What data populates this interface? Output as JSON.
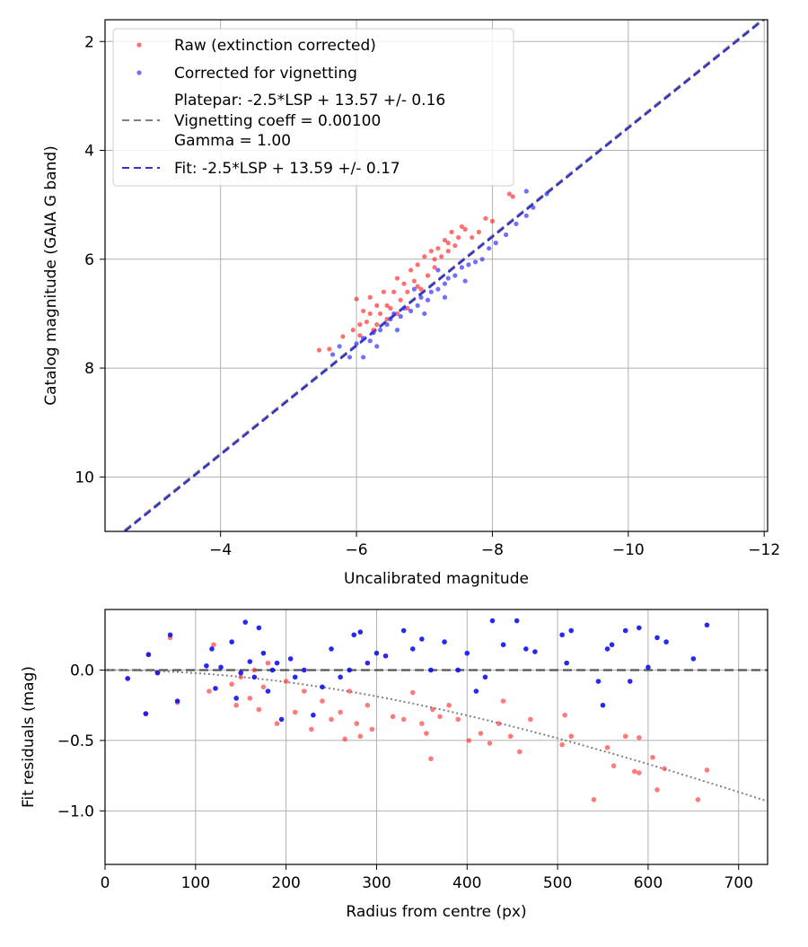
{
  "chart_data": [
    {
      "type": "scatter",
      "xlabel": "Uncalibrated magnitude",
      "ylabel": "Catalog magnitude (GAIA G band)",
      "xlim": [
        -2.3,
        -12.05
      ],
      "ylim": [
        11.0,
        1.6
      ],
      "grid": true,
      "x_ticks": [
        -4,
        -6,
        -8,
        -10,
        -12
      ],
      "x_tick_labels": [
        "−4",
        "−6",
        "−8",
        "−10",
        "−12"
      ],
      "y_ticks": [
        2,
        4,
        6,
        8,
        10
      ],
      "y_tick_labels": [
        "2",
        "4",
        "6",
        "8",
        "10"
      ],
      "legend_position": "top-left",
      "legend": {
        "raw": "Raw (extinction corrected)",
        "corrected": "Corrected for vignetting",
        "platepar_line1": "Platepar: -2.5*LSP + 13.57 +/- 0.16",
        "platepar_line2": "Vignetting coeff = 0.00100",
        "platepar_line3": "Gamma = 1.00",
        "fit": "Fit: -2.5*LSP + 13.59 +/- 0.17"
      },
      "lines": [
        {
          "name": "platepar",
          "slope": 1.0,
          "intercept": 13.57,
          "color": "#808080",
          "style": "dashed"
        },
        {
          "name": "fit",
          "slope": 1.0,
          "intercept": 13.59,
          "color": "#3333cc",
          "style": "dashed"
        }
      ],
      "series": [
        {
          "name": "Raw (extinction corrected)",
          "color": "#ff3333",
          "points": [
            [
              -5.45,
              7.67
            ],
            [
              -5.6,
              7.65
            ],
            [
              -5.8,
              7.42
            ],
            [
              -5.95,
              7.3
            ],
            [
              -6.0,
              6.73
            ],
            [
              -6.05,
              7.2
            ],
            [
              -6.1,
              6.95
            ],
            [
              -6.15,
              7.15
            ],
            [
              -6.2,
              7.0
            ],
            [
              -6.2,
              6.7
            ],
            [
              -6.25,
              7.3
            ],
            [
              -6.3,
              6.85
            ],
            [
              -6.35,
              7.0
            ],
            [
              -6.4,
              6.6
            ],
            [
              -6.45,
              6.85
            ],
            [
              -6.5,
              6.9
            ],
            [
              -6.55,
              6.6
            ],
            [
              -6.6,
              6.35
            ],
            [
              -6.65,
              6.75
            ],
            [
              -6.7,
              6.45
            ],
            [
              -6.75,
              6.9
            ],
            [
              -6.8,
              6.2
            ],
            [
              -6.85,
              6.4
            ],
            [
              -6.9,
              6.1
            ],
            [
              -6.95,
              6.55
            ],
            [
              -7.0,
              5.95
            ],
            [
              -7.05,
              6.3
            ],
            [
              -7.1,
              5.85
            ],
            [
              -7.15,
              6.15
            ],
            [
              -7.2,
              5.8
            ],
            [
              -7.25,
              5.95
            ],
            [
              -7.3,
              5.65
            ],
            [
              -7.35,
              5.85
            ],
            [
              -7.4,
              5.5
            ],
            [
              -7.45,
              5.75
            ],
            [
              -7.5,
              5.6
            ],
            [
              -7.55,
              5.4
            ],
            [
              -7.6,
              5.45
            ],
            [
              -7.7,
              5.6
            ],
            [
              -7.8,
              5.5
            ],
            [
              -7.9,
              5.25
            ],
            [
              -8.0,
              5.3
            ],
            [
              -8.25,
              4.8
            ],
            [
              -8.3,
              4.85
            ],
            [
              -6.3,
              7.2
            ],
            [
              -6.6,
              7.0
            ],
            [
              -6.9,
              6.5
            ],
            [
              -7.15,
              6.0
            ],
            [
              -7.35,
              5.7
            ],
            [
              -6.05,
              7.4
            ],
            [
              -6.45,
              7.1
            ],
            [
              -6.75,
              6.6
            ]
          ]
        },
        {
          "name": "Corrected for vignetting",
          "color": "#3333ff",
          "points": [
            [
              -5.65,
              7.75
            ],
            [
              -5.75,
              7.6
            ],
            [
              -5.9,
              7.8
            ],
            [
              -6.0,
              7.55
            ],
            [
              -6.1,
              7.45
            ],
            [
              -6.2,
              7.5
            ],
            [
              -6.25,
              7.35
            ],
            [
              -6.35,
              7.3
            ],
            [
              -6.45,
              7.2
            ],
            [
              -6.5,
              7.1
            ],
            [
              -6.55,
              7.0
            ],
            [
              -6.65,
              7.05
            ],
            [
              -6.7,
              6.9
            ],
            [
              -6.8,
              6.95
            ],
            [
              -6.9,
              6.85
            ],
            [
              -6.95,
              6.7
            ],
            [
              -7.05,
              6.75
            ],
            [
              -7.1,
              6.6
            ],
            [
              -7.2,
              6.55
            ],
            [
              -7.3,
              6.45
            ],
            [
              -7.35,
              6.35
            ],
            [
              -7.45,
              6.3
            ],
            [
              -7.55,
              6.15
            ],
            [
              -7.65,
              6.1
            ],
            [
              -7.75,
              6.05
            ],
            [
              -7.85,
              6.0
            ],
            [
              -7.95,
              5.8
            ],
            [
              -8.05,
              5.7
            ],
            [
              -8.2,
              5.55
            ],
            [
              -8.35,
              5.35
            ],
            [
              -8.5,
              5.2
            ],
            [
              -8.6,
              5.05
            ],
            [
              -8.8,
              4.8
            ],
            [
              -8.5,
              4.75
            ],
            [
              -6.1,
              7.8
            ],
            [
              -6.3,
              7.6
            ],
            [
              -6.6,
              7.3
            ],
            [
              -7.0,
              7.0
            ],
            [
              -7.3,
              6.7
            ],
            [
              -7.6,
              6.4
            ],
            [
              -7.2,
              6.2
            ],
            [
              -6.85,
              6.55
            ]
          ]
        }
      ]
    },
    {
      "type": "scatter",
      "xlabel": "Radius from centre (px)",
      "ylabel": "Fit residuals (mag)",
      "xlim": [
        0,
        732
      ],
      "ylim": [
        -1.38,
        0.43
      ],
      "grid": true,
      "x_ticks": [
        0,
        100,
        200,
        300,
        400,
        500,
        600,
        700
      ],
      "x_tick_labels": [
        "0",
        "100",
        "200",
        "300",
        "400",
        "500",
        "600",
        "700"
      ],
      "y_ticks": [
        0.0,
        -0.5,
        -1.0
      ],
      "y_tick_labels": [
        "0.0",
        "−0.5",
        "−1.0"
      ],
      "lines": [
        {
          "name": "zero",
          "value": 0.0,
          "color": "#555555",
          "style": "dashed"
        },
        {
          "name": "vignetting model",
          "coeff": 0.001,
          "color": "#808080",
          "style": "dotted"
        }
      ],
      "series": [
        {
          "name": "Raw (extinction corrected)",
          "color": "#ff3333",
          "points": [
            [
              25,
              -0.06
            ],
            [
              45,
              -0.31
            ],
            [
              48,
              0.11
            ],
            [
              58,
              -0.02
            ],
            [
              72,
              0.23
            ],
            [
              80,
              -0.23
            ],
            [
              115,
              -0.15
            ],
            [
              120,
              0.18
            ],
            [
              140,
              -0.1
            ],
            [
              145,
              -0.25
            ],
            [
              150,
              -0.05
            ],
            [
              160,
              -0.2
            ],
            [
              165,
              0.0
            ],
            [
              170,
              -0.28
            ],
            [
              175,
              -0.12
            ],
            [
              180,
              0.05
            ],
            [
              190,
              -0.38
            ],
            [
              200,
              -0.08
            ],
            [
              210,
              -0.3
            ],
            [
              220,
              -0.15
            ],
            [
              228,
              -0.42
            ],
            [
              240,
              -0.22
            ],
            [
              250,
              -0.35
            ],
            [
              260,
              -0.3
            ],
            [
              265,
              -0.49
            ],
            [
              270,
              -0.15
            ],
            [
              278,
              -0.38
            ],
            [
              282,
              -0.47
            ],
            [
              290,
              -0.25
            ],
            [
              295,
              -0.42
            ],
            [
              318,
              -0.33
            ],
            [
              330,
              -0.35
            ],
            [
              340,
              -0.16
            ],
            [
              350,
              -0.38
            ],
            [
              355,
              -0.45
            ],
            [
              360,
              -0.63
            ],
            [
              362,
              -0.28
            ],
            [
              370,
              -0.33
            ],
            [
              380,
              -0.25
            ],
            [
              390,
              -0.35
            ],
            [
              402,
              -0.5
            ],
            [
              415,
              -0.45
            ],
            [
              425,
              -0.52
            ],
            [
              435,
              -0.38
            ],
            [
              440,
              -0.22
            ],
            [
              448,
              -0.47
            ],
            [
              458,
              -0.58
            ],
            [
              470,
              -0.35
            ],
            [
              505,
              -0.53
            ],
            [
              508,
              -0.32
            ],
            [
              515,
              -0.47
            ],
            [
              540,
              -0.92
            ],
            [
              555,
              -0.55
            ],
            [
              562,
              -0.68
            ],
            [
              575,
              -0.47
            ],
            [
              585,
              -0.72
            ],
            [
              590,
              -0.48
            ],
            [
              605,
              -0.62
            ],
            [
              618,
              -0.7
            ],
            [
              655,
              -0.92
            ],
            [
              665,
              -0.71
            ],
            [
              590,
              -0.73
            ],
            [
              610,
              -0.85
            ]
          ]
        },
        {
          "name": "Corrected for vignetting",
          "color": "#1111ee",
          "points": [
            [
              25,
              -0.06
            ],
            [
              45,
              -0.31
            ],
            [
              48,
              0.11
            ],
            [
              58,
              -0.02
            ],
            [
              72,
              0.25
            ],
            [
              80,
              -0.22
            ],
            [
              112,
              0.03
            ],
            [
              118,
              0.15
            ],
            [
              122,
              -0.13
            ],
            [
              128,
              0.02
            ],
            [
              140,
              0.2
            ],
            [
              145,
              -0.2
            ],
            [
              150,
              -0.02
            ],
            [
              155,
              0.34
            ],
            [
              160,
              0.06
            ],
            [
              165,
              -0.05
            ],
            [
              170,
              0.3
            ],
            [
              175,
              0.12
            ],
            [
              180,
              -0.15
            ],
            [
              185,
              0.0
            ],
            [
              190,
              0.05
            ],
            [
              195,
              -0.35
            ],
            [
              205,
              0.08
            ],
            [
              210,
              -0.05
            ],
            [
              220,
              0.0
            ],
            [
              230,
              -0.32
            ],
            [
              240,
              -0.12
            ],
            [
              250,
              0.15
            ],
            [
              260,
              -0.05
            ],
            [
              270,
              0.0
            ],
            [
              275,
              0.25
            ],
            [
              282,
              0.27
            ],
            [
              290,
              0.05
            ],
            [
              300,
              0.12
            ],
            [
              310,
              0.1
            ],
            [
              330,
              0.28
            ],
            [
              340,
              0.15
            ],
            [
              350,
              0.22
            ],
            [
              360,
              0.0
            ],
            [
              375,
              0.2
            ],
            [
              390,
              0.0
            ],
            [
              400,
              0.12
            ],
            [
              410,
              -0.15
            ],
            [
              420,
              -0.05
            ],
            [
              428,
              0.35
            ],
            [
              440,
              0.18
            ],
            [
              455,
              0.35
            ],
            [
              465,
              0.15
            ],
            [
              475,
              0.13
            ],
            [
              505,
              0.25
            ],
            [
              510,
              0.05
            ],
            [
              515,
              0.28
            ],
            [
              545,
              -0.08
            ],
            [
              550,
              -0.25
            ],
            [
              555,
              0.15
            ],
            [
              560,
              0.18
            ],
            [
              575,
              0.28
            ],
            [
              580,
              -0.08
            ],
            [
              590,
              0.3
            ],
            [
              600,
              0.02
            ],
            [
              610,
              0.23
            ],
            [
              620,
              0.2
            ],
            [
              650,
              0.08
            ],
            [
              665,
              0.32
            ]
          ]
        }
      ]
    }
  ]
}
